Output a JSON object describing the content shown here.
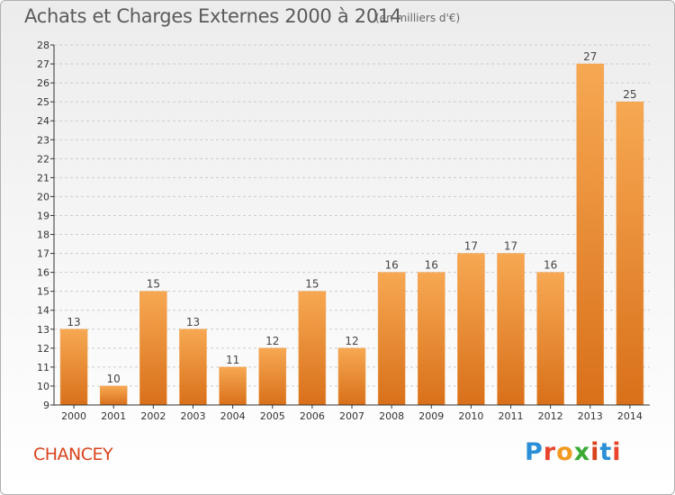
{
  "title": "Achats et Charges Externes 2000 à 2014",
  "subtitle": "(en milliers d'€)",
  "place": "CHANCEY",
  "brand": {
    "letters": [
      "P",
      "r",
      "o",
      "x",
      "i",
      "t",
      "i"
    ],
    "colors": [
      "#2a8fd6",
      "#e8452c",
      "#f29a1f",
      "#3aaa35",
      "#d9431c",
      "#2a8fd6",
      "#e8452c"
    ]
  },
  "colors": {
    "bar_top": "#f7a852",
    "bar_bottom": "#d9701a",
    "bar_edge": "#f0a050",
    "axis": "#333333",
    "grid": "#cccccc"
  },
  "chart_data": {
    "type": "bar",
    "categories": [
      "2000",
      "2001",
      "2002",
      "2003",
      "2004",
      "2005",
      "2006",
      "2007",
      "2008",
      "2009",
      "2010",
      "2011",
      "2012",
      "2013",
      "2014"
    ],
    "values": [
      13,
      10,
      15,
      13,
      11,
      12,
      15,
      12,
      16,
      16,
      17,
      17,
      16,
      27,
      25
    ],
    "ylim": [
      9,
      28
    ],
    "yticks": [
      9,
      10,
      11,
      12,
      13,
      14,
      15,
      16,
      17,
      18,
      19,
      20,
      21,
      22,
      23,
      24,
      25,
      26,
      27,
      28
    ],
    "grid": true,
    "data_labels": true
  }
}
